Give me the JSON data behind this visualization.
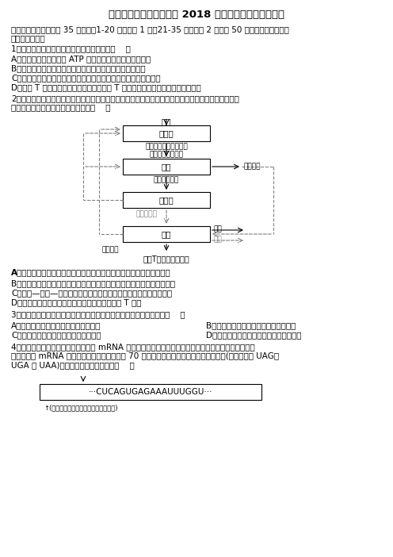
{
  "title": "新疆乌鲁木齐市达标名校 2018 年高考三月调研生物试卷",
  "section1_header": "一、单选题（本题包括 35 个小题，1-20 题每小题 1 分，21-35 题每小题 2 分，共 50 分．每小题只有一个\n选项符合题意）",
  "q1": "1．下列有关细胞生命活动的叙述，错误的是（    ）",
  "q1a": "A．细胞生命活动所需的 ATP 主要是在线粒体内膜上产生的",
  "q1b": "B．胸腺泡细胞转运氨基酸的载体并不都是在核糖体上合成的",
  "q1c": "C．肾小管重吸收水的结构基础是其细胞膜上存在较多转运水的物质",
  "q1d": "D．效应 T 细胞与靶细胞密切接触后，效应 T 细胞释放溶酶体毒引起了靶细胞凋亡",
  "q2": "2．胸腺激素是胸腺分泌的一种多肽类激素，可以增强免疫细胞的功能，其分泌受多种激素控制，部分调\n节过程如图所示，下列说法正确的是（    ）",
  "flowchart_nodes": [
    "下丘脑",
    "垂体",
    "甲状腺",
    "胸腺"
  ],
  "flowchart_labels": [
    "促甲状腺激素释放激素\n生长激素释放激素",
    "促甲状腺激素",
    "甲状腺激素"
  ],
  "flowchart_right_labels": [
    "生长激素",
    "促进",
    "抑制"
  ],
  "flowchart_bottom": "促进T细胞分化、成熟",
  "flowchart_left_label": "胸腺激素",
  "q2a": "A．人垂体细胞表面只含有促甲状腺激素释放激素受体和甲状腺激素受体",
  "q2b": "B．图示过程中既有正反馈调节又有负反馈调节，二者共同调节胸腺的发育",
  "q2c": "C．神经—体液—免疫调节网络能够维持机体内环境理化性质稳定不变",
  "q2d": "D．胸腺激素可诱导来自骨髓的造血干细胞分化成 T 细胞",
  "q3": "3．下列有关利用生物技术培育作物新品种的相关操作叙述，正确的是（    ）",
  "q3a": "A．用限制酶识别目的基因并与载体连接",
  "q3b": "B．用光学显微镜观察目的基因是否导入",
  "q3c": "C．培养外植体的培养基属于固体培养基",
  "q3d": "D．利用平板划线法在培养基上接种外植体",
  "q4": "4．下图为某种细菌中某酶基因转录的 mRNA 部分序列，现有一细菌的该酶由于基因突变而失活，突变后\n基因转录的 mRNA 在图中箭头所示位置增加了 70 个核苷酸，使图示序列中出现终止密码(终止密码有 UAG、\nUGA 和 UAA)．下列有关说法错误的是（    ）",
  "mrna_seq": "···CUCAGUGAGAAAUUUGGU···",
  "mrna_note": "↑(表示从起始密码开始编码的第碱基位)",
  "background_color": "#ffffff",
  "text_color": "#000000",
  "box_color": "#000000",
  "dashed_color": "#999999"
}
